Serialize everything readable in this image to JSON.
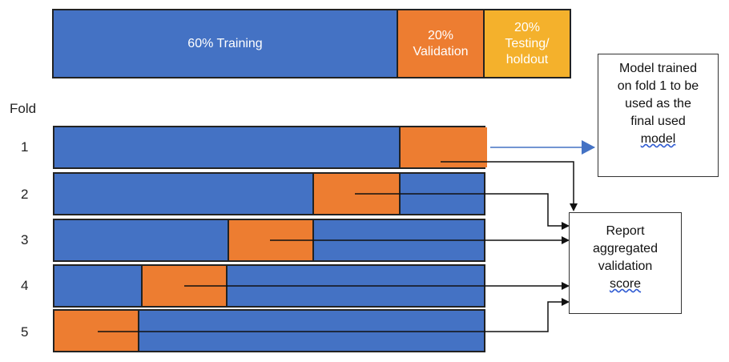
{
  "split_bar": {
    "training": "60% Training",
    "validation": [
      "20%",
      "Validation"
    ],
    "testing": [
      "20%",
      "Testing/",
      "holdout"
    ]
  },
  "fold_header": "Fold",
  "folds": [
    "1",
    "2",
    "3",
    "4",
    "5"
  ],
  "model_box": {
    "lines": [
      "Model trained",
      "on fold 1 to be",
      "used as the",
      "final used"
    ],
    "underlined": "model"
  },
  "report_box": {
    "lines": [
      "Report",
      "aggregated",
      "validation"
    ],
    "underlined": "score"
  },
  "colors": {
    "training": "#4472c4",
    "validation": "#ed7d31",
    "testing": "#f4b12c",
    "link_arrow": "#4472c4"
  }
}
